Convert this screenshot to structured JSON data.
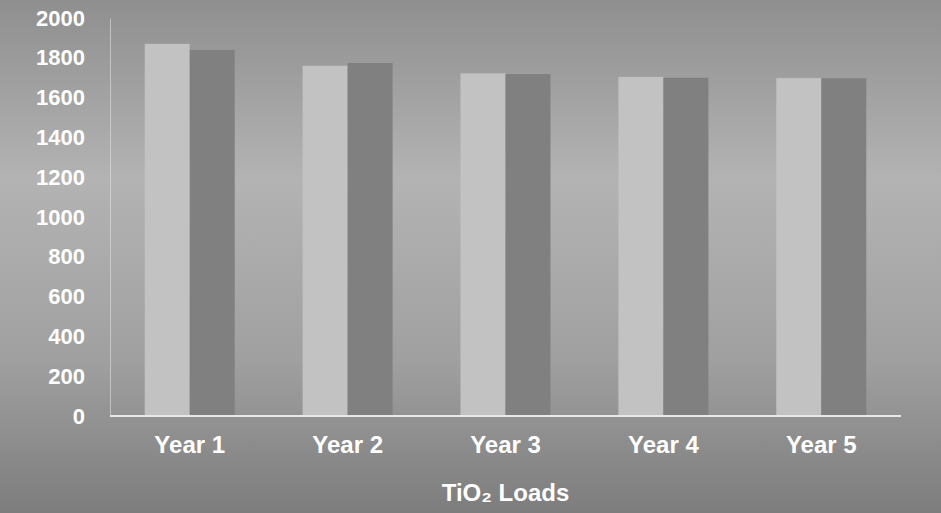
{
  "chart_data": {
    "type": "bar",
    "x_label": "TiO₂ Loads",
    "categories": [
      "Year 1",
      "Year 2",
      "Year 3",
      "Year 4",
      "Year 5"
    ],
    "series": [
      {
        "color": "#c2c2c2",
        "values": [
          1870,
          1760,
          1722,
          1704,
          1698
        ]
      },
      {
        "color": "#808080",
        "values": [
          1840,
          1774,
          1718,
          1700,
          1697
        ]
      }
    ],
    "ylim": [
      0,
      2000
    ],
    "yticks": [
      0,
      200,
      400,
      600,
      800,
      1000,
      1200,
      1400,
      1600,
      1800,
      2000
    ],
    "grid": false
  }
}
